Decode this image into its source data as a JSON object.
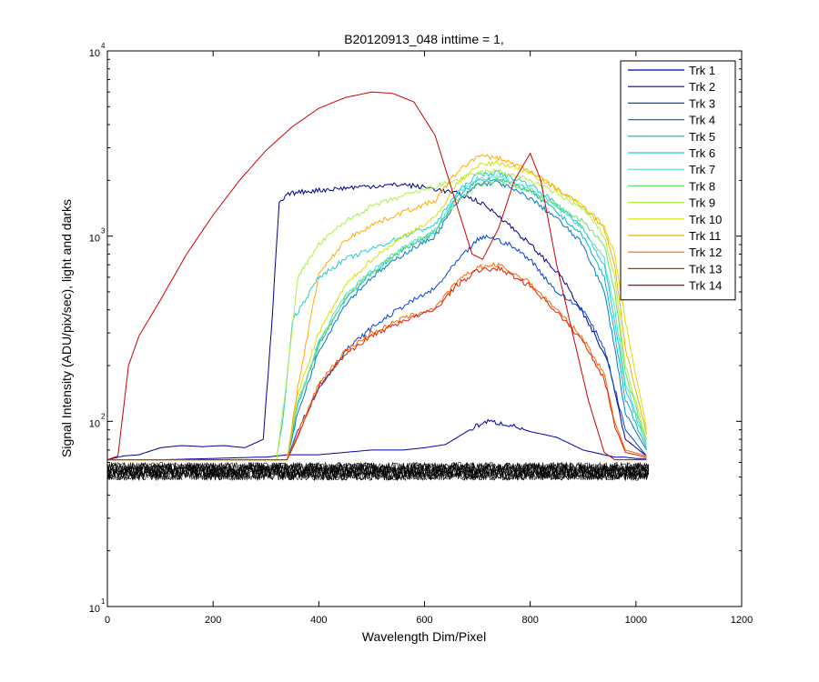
{
  "chart_data": {
    "type": "line",
    "title": "B20120913_048 inttime = 1,",
    "xlabel": "Wavelength Dim/Pixel",
    "ylabel": "Signal Intensity (ADU/pix/sec), light and darks",
    "xlim": [
      0,
      1200
    ],
    "ylim": [
      10,
      10000
    ],
    "yscale": "log",
    "x_ticks": [
      "0",
      "200",
      "400",
      "600",
      "800",
      "1000",
      "1200"
    ],
    "y_ticks": [
      {
        "base": "10",
        "exp": "1"
      },
      {
        "base": "10",
        "exp": "2"
      },
      {
        "base": "10",
        "exp": "3"
      },
      {
        "base": "10",
        "exp": "4"
      }
    ],
    "grid": false,
    "legend_position": "top-right",
    "series": [
      {
        "name": "Trk 1",
        "color": "#0000aa",
        "x": [
          0,
          100,
          200,
          280,
          300,
          320,
          340,
          360,
          400,
          450,
          500,
          560,
          600,
          640,
          680,
          700,
          720,
          760,
          800,
          850,
          900,
          940,
          960,
          980,
          1000,
          1020
        ],
        "y": [
          62,
          62,
          63,
          64,
          64,
          65,
          66,
          66,
          66,
          68,
          70,
          70,
          72,
          75,
          88,
          95,
          100,
          96,
          88,
          82,
          70,
          66,
          64,
          64,
          63,
          63
        ]
      },
      {
        "name": "Trk 2",
        "color": "#00008f",
        "x": [
          0,
          30,
          60,
          100,
          140,
          180,
          220,
          260,
          295,
          310,
          325,
          345,
          380,
          430,
          480,
          560,
          620,
          660,
          700,
          740,
          800,
          860,
          920,
          950,
          980,
          1020
        ],
        "y": [
          62,
          65,
          66,
          72,
          74,
          73,
          74,
          72,
          80,
          300,
          1500,
          1700,
          1750,
          1800,
          1850,
          1900,
          1800,
          1700,
          1550,
          1300,
          900,
          600,
          300,
          200,
          80,
          65
        ]
      },
      {
        "name": "Trk 3",
        "color": "#0044dd",
        "x": [
          0,
          200,
          340,
          360,
          400,
          450,
          500,
          560,
          620,
          660,
          700,
          720,
          760,
          800,
          850,
          900,
          940,
          960,
          980,
          1020
        ],
        "y": [
          62,
          62,
          62,
          90,
          150,
          240,
          320,
          420,
          520,
          720,
          950,
          1000,
          900,
          750,
          500,
          400,
          250,
          150,
          90,
          65
        ]
      },
      {
        "name": "Trk 4",
        "color": "#0077cc",
        "x": [
          0,
          200,
          340,
          360,
          400,
          450,
          500,
          560,
          620,
          660,
          700,
          740,
          800,
          850,
          900,
          940,
          960,
          980,
          1020
        ],
        "y": [
          62,
          62,
          62,
          110,
          240,
          430,
          600,
          800,
          1000,
          1500,
          1900,
          1950,
          1600,
          1250,
          900,
          500,
          250,
          110,
          70
        ]
      },
      {
        "name": "Trk 5",
        "color": "#00b4cc",
        "x": [
          0,
          200,
          340,
          360,
          400,
          450,
          500,
          560,
          620,
          660,
          700,
          740,
          800,
          850,
          900,
          940,
          960,
          980,
          1020
        ],
        "y": [
          62,
          62,
          62,
          120,
          260,
          460,
          630,
          850,
          1050,
          1600,
          2000,
          2050,
          1750,
          1350,
          1000,
          600,
          300,
          130,
          72
        ]
      },
      {
        "name": "Trk 6",
        "color": "#22cccc",
        "x": [
          0,
          200,
          320,
          335,
          350,
          400,
          450,
          500,
          560,
          620,
          660,
          700,
          740,
          800,
          850,
          900,
          940,
          960,
          980,
          1020
        ],
        "y": [
          62,
          62,
          62,
          120,
          350,
          600,
          750,
          850,
          1000,
          1150,
          1700,
          2150,
          2200,
          1900,
          1500,
          1100,
          700,
          350,
          150,
          75
        ]
      },
      {
        "name": "Trk 7",
        "color": "#55e0cc",
        "x": [
          0,
          200,
          340,
          360,
          400,
          450,
          500,
          560,
          620,
          660,
          700,
          740,
          800,
          850,
          900,
          940,
          960,
          980,
          1020
        ],
        "y": [
          62,
          62,
          62,
          125,
          270,
          480,
          650,
          880,
          1080,
          1650,
          2050,
          2100,
          1800,
          1450,
          1100,
          750,
          400,
          160,
          75
        ]
      },
      {
        "name": "Trk 8",
        "color": "#66e066",
        "x": [
          0,
          200,
          340,
          360,
          400,
          450,
          500,
          560,
          620,
          660,
          700,
          740,
          800,
          850,
          900,
          940,
          960,
          980,
          1020
        ],
        "y": [
          62,
          62,
          62,
          125,
          260,
          470,
          640,
          850,
          1050,
          1550,
          1900,
          2000,
          1750,
          1450,
          1200,
          900,
          500,
          180,
          78
        ]
      },
      {
        "name": "Trk 9",
        "color": "#aaee44",
        "x": [
          0,
          200,
          320,
          335,
          360,
          400,
          450,
          500,
          560,
          620,
          660,
          700,
          740,
          800,
          850,
          900,
          940,
          960,
          980,
          1020
        ],
        "y": [
          62,
          62,
          62,
          130,
          600,
          900,
          1200,
          1450,
          1650,
          1850,
          2000,
          2200,
          2250,
          2000,
          1700,
          1400,
          1000,
          600,
          200,
          80
        ]
      },
      {
        "name": "Trk 10",
        "color": "#dddd00",
        "x": [
          0,
          200,
          340,
          360,
          400,
          450,
          500,
          560,
          620,
          660,
          700,
          740,
          800,
          850,
          900,
          940,
          960,
          980,
          1020
        ],
        "y": [
          62,
          62,
          62,
          140,
          300,
          540,
          750,
          1000,
          1250,
          1900,
          2400,
          2500,
          2200,
          1800,
          1450,
          1150,
          800,
          350,
          90
        ]
      },
      {
        "name": "Trk 11",
        "color": "#ffaa00",
        "x": [
          0,
          200,
          340,
          360,
          400,
          450,
          500,
          560,
          620,
          660,
          700,
          740,
          800,
          850,
          900,
          940,
          960,
          980,
          1020
        ],
        "y": [
          62,
          62,
          62,
          150,
          620,
          950,
          1150,
          1350,
          1550,
          2200,
          2700,
          2650,
          2250,
          1800,
          1450,
          1100,
          700,
          250,
          85
        ]
      },
      {
        "name": "Trk 12",
        "color": "#ff6600",
        "x": [
          0,
          200,
          340,
          360,
          400,
          450,
          500,
          560,
          620,
          660,
          700,
          740,
          800,
          850,
          900,
          940,
          960,
          980,
          1020
        ],
        "y": [
          62,
          62,
          62,
          85,
          160,
          240,
          300,
          360,
          410,
          560,
          680,
          700,
          560,
          400,
          280,
          180,
          100,
          70,
          65
        ]
      },
      {
        "name": "Trk 13",
        "color": "#dd2200",
        "x": [
          0,
          200,
          340,
          360,
          400,
          450,
          500,
          560,
          620,
          660,
          700,
          740,
          800,
          850,
          900,
          940,
          960,
          980,
          1020
        ],
        "y": [
          62,
          62,
          62,
          82,
          155,
          230,
          290,
          350,
          400,
          540,
          650,
          670,
          540,
          390,
          270,
          170,
          95,
          68,
          64
        ]
      },
      {
        "name": "Trk 14",
        "color": "#cc0000",
        "x": [
          0,
          20,
          40,
          60,
          100,
          150,
          200,
          250,
          300,
          350,
          400,
          450,
          500,
          540,
          580,
          620,
          660,
          690,
          710,
          740,
          770,
          800,
          820,
          850,
          880,
          910,
          940,
          960,
          1000,
          1020
        ],
        "y": [
          62,
          65,
          200,
          290,
          450,
          800,
          1300,
          2000,
          2900,
          3900,
          4900,
          5600,
          6000,
          5900,
          5300,
          3500,
          1500,
          800,
          750,
          1100,
          2000,
          2800,
          2000,
          700,
          300,
          130,
          68,
          62,
          62,
          62
        ]
      }
    ],
    "dark_band": {
      "color": "#000000",
      "x_range": [
        0,
        1025
      ],
      "y_range": [
        48,
        60
      ]
    }
  }
}
